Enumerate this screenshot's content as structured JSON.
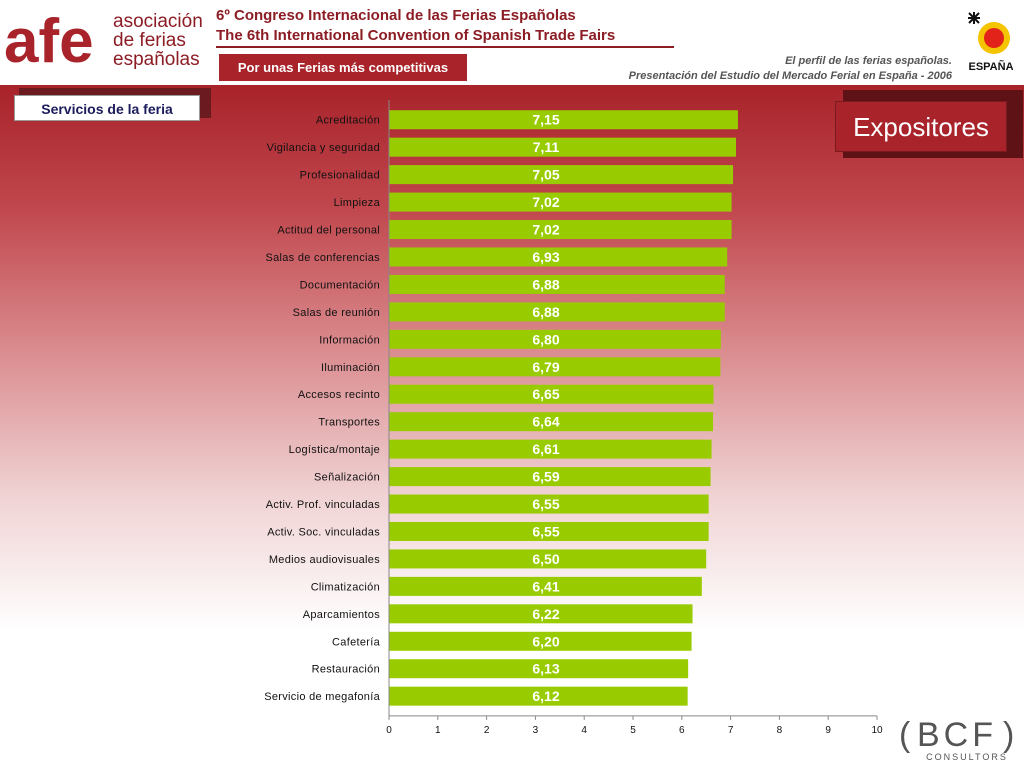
{
  "header": {
    "afe_letters": "afe",
    "assoc_lines": [
      "asociación",
      "de ferias",
      "españolas"
    ],
    "title_line1": "6º Congreso Internacional de las Ferias Españolas",
    "title_line2": "The 6th International Convention of Spanish Trade Fairs",
    "slogan": "Por unas Ferias más competitivas",
    "subtitle_line1": "El perfil de las ferias españolas.",
    "subtitle_line2": "Presentación del Estudio del Mercado Ferial en España - 2006",
    "espana_text": "ESPAÑA"
  },
  "section_tab": "Servicios de la feria",
  "expositores_label": "Expositores",
  "footer_logo": {
    "main": "BCF",
    "sub": "CONSULTORS"
  },
  "colors": {
    "bar": "#99cc00",
    "brand": "#a8232a",
    "dark_red": "#8c1d24"
  },
  "chart_data": {
    "type": "bar",
    "orientation": "horizontal",
    "categories": [
      "Acreditación",
      "Vigilancia y seguridad",
      "Profesionalidad",
      "Limpieza",
      "Actitud del personal",
      "Salas de conferencias",
      "Documentación",
      "Salas de reunión",
      "Información",
      "Iluminación",
      "Accesos recinto",
      "Transportes",
      "Logística/montaje",
      "Señalización",
      "Activ. Prof. vinculadas",
      "Activ. Soc. vinculadas",
      "Medios audiovisuales",
      "Climatización",
      "Aparcamientos",
      "Cafetería",
      "Restauración",
      "Servicio de megafonía"
    ],
    "values": [
      7.15,
      7.11,
      7.05,
      7.02,
      7.02,
      6.93,
      6.88,
      6.88,
      6.8,
      6.79,
      6.65,
      6.64,
      6.61,
      6.59,
      6.55,
      6.55,
      6.5,
      6.41,
      6.22,
      6.2,
      6.13,
      6.12
    ],
    "value_labels": [
      "7,15",
      "7,11",
      "7,05",
      "7,02",
      "7,02",
      "6,93",
      "6,88",
      "6,88",
      "6,80",
      "6,79",
      "6,65",
      "6,64",
      "6,61",
      "6,59",
      "6,55",
      "6,55",
      "6,50",
      "6,41",
      "6,22",
      "6,20",
      "6,13",
      "6,12"
    ],
    "xticks": [
      "0",
      "1",
      "2",
      "3",
      "4",
      "5",
      "6",
      "7",
      "8",
      "9",
      "10"
    ],
    "xlim": [
      0,
      10
    ],
    "grid": false,
    "legend": "none"
  }
}
